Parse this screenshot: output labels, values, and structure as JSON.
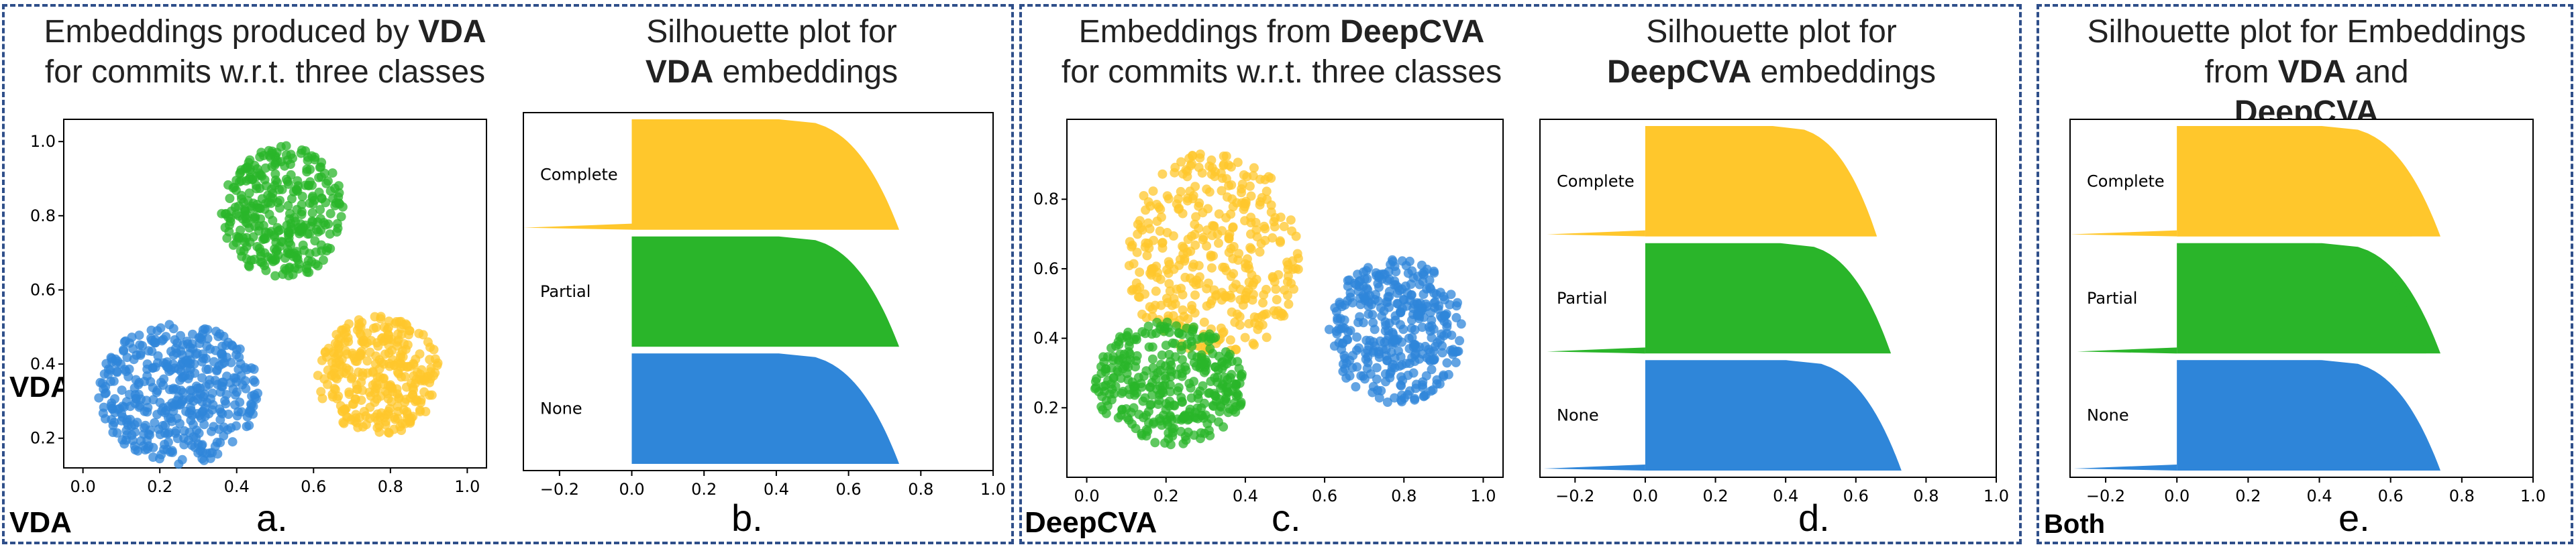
{
  "panels": [
    {
      "heading_lines": [
        [
          "Embeddings produced by ",
          "VDA",
          ""
        ],
        [
          "for commits w.r.t. three classes",
          "",
          ""
        ]
      ]
    },
    {
      "heading_lines": [
        [
          "Silhouette plot for",
          "",
          ""
        ],
        [
          "",
          "VDA",
          " embeddings"
        ]
      ]
    },
    {
      "heading_lines": [
        [
          "Embeddings from ",
          "DeepCVA",
          ""
        ],
        [
          "for commits w.r.t. three classes",
          "",
          ""
        ]
      ]
    },
    {
      "heading_lines": [
        [
          "Silhouette plot for",
          "",
          ""
        ],
        [
          "",
          "DeepCVA",
          " embeddings"
        ]
      ]
    },
    {
      "heading_lines": [
        [
          "Silhouette plot for Embeddings",
          "",
          ""
        ],
        [
          "from ",
          "VDA",
          " and "
        ],
        [
          "",
          "DeepCVA",
          ""
        ]
      ]
    }
  ],
  "tags": {
    "a": "VDA",
    "c": "DeepCVA",
    "e": "Both"
  },
  "letters": {
    "a": "a.",
    "b": "b.",
    "c": "c.",
    "d": "d.",
    "e": "e."
  },
  "colors": {
    "complete": "#ffc72c",
    "partial": "#2ab52a",
    "none": "#2f86d9",
    "frame": "#2f4f8a"
  },
  "chart_data": [
    {
      "id": "a",
      "type": "scatter",
      "xlim": [
        -0.05,
        1.05
      ],
      "ylim": [
        0.12,
        1.06
      ],
      "xticks": [
        "0.0",
        "0.2",
        "0.4",
        "0.6",
        "0.8",
        "1.0"
      ],
      "yticks": [
        "0.2",
        "0.4",
        "0.6",
        "0.8",
        "1.0"
      ],
      "clusters": [
        {
          "class": "Complete",
          "color": "#ffc72c",
          "cx": 0.77,
          "cy": 0.37,
          "rx": 0.16,
          "ry": 0.16,
          "n": 320
        },
        {
          "class": "Partial",
          "color": "#2ab52a",
          "cx": 0.52,
          "cy": 0.81,
          "rx": 0.16,
          "ry": 0.18,
          "n": 330
        },
        {
          "class": "None",
          "color": "#2f86d9",
          "cx": 0.25,
          "cy": 0.32,
          "rx": 0.21,
          "ry": 0.19,
          "n": 420
        }
      ]
    },
    {
      "id": "b",
      "type": "silhouette",
      "xlim": [
        -0.3,
        1.0
      ],
      "xticks": [
        "−0.2",
        "0.0",
        "0.2",
        "0.4",
        "0.6",
        "0.8",
        "1.0"
      ],
      "classes": [
        {
          "name": "Complete",
          "color": "#ffc72c",
          "max": 0.74,
          "neg_tail": -0.3
        },
        {
          "name": "Partial",
          "color": "#2ab52a",
          "max": 0.74,
          "neg_tail": 0
        },
        {
          "name": "None",
          "color": "#2f86d9",
          "max": 0.74,
          "neg_tail": 0
        }
      ]
    },
    {
      "id": "c",
      "type": "scatter",
      "xlim": [
        -0.05,
        1.05
      ],
      "ylim": [
        0.0,
        1.03
      ],
      "xticks": [
        "0.0",
        "0.2",
        "0.4",
        "0.6",
        "0.8",
        "1.0"
      ],
      "yticks": [
        "0.2",
        "0.4",
        "0.6",
        "0.8"
      ],
      "clusters": [
        {
          "class": "Complete",
          "color": "#ffc72c",
          "cx": 0.32,
          "cy": 0.64,
          "rx": 0.22,
          "ry": 0.3,
          "n": 380
        },
        {
          "class": "Partial",
          "color": "#2ab52a",
          "cx": 0.21,
          "cy": 0.27,
          "rx": 0.19,
          "ry": 0.18,
          "n": 360
        },
        {
          "class": "None",
          "color": "#2f86d9",
          "cx": 0.78,
          "cy": 0.42,
          "rx": 0.17,
          "ry": 0.21,
          "n": 360
        }
      ]
    },
    {
      "id": "d",
      "type": "silhouette",
      "xlim": [
        -0.3,
        1.0
      ],
      "xticks": [
        "−0.2",
        "0.0",
        "0.2",
        "0.4",
        "0.6",
        "0.8",
        "1.0"
      ],
      "classes": [
        {
          "name": "Complete",
          "color": "#ffc72c",
          "max": 0.66,
          "neg_tail": -0.28
        },
        {
          "name": "Partial",
          "color": "#2ab52a",
          "max": 0.7,
          "neg_tail": -0.28
        },
        {
          "name": "None",
          "color": "#2f86d9",
          "max": 0.73,
          "neg_tail": -0.29
        }
      ]
    },
    {
      "id": "e",
      "type": "silhouette",
      "xlim": [
        -0.3,
        1.0
      ],
      "xticks": [
        "−0.2",
        "0.0",
        "0.2",
        "0.4",
        "0.6",
        "0.8",
        "1.0"
      ],
      "classes": [
        {
          "name": "Complete",
          "color": "#ffc72c",
          "max": 0.74,
          "max2": 0.66,
          "neg_tail": -0.3
        },
        {
          "name": "Partial",
          "color": "#2ab52a",
          "max": 0.74,
          "max2": 0.7,
          "neg_tail": -0.28
        },
        {
          "name": "None",
          "color": "#2f86d9",
          "max": 0.74,
          "max2": 0.73,
          "neg_tail": -0.29
        }
      ]
    }
  ]
}
